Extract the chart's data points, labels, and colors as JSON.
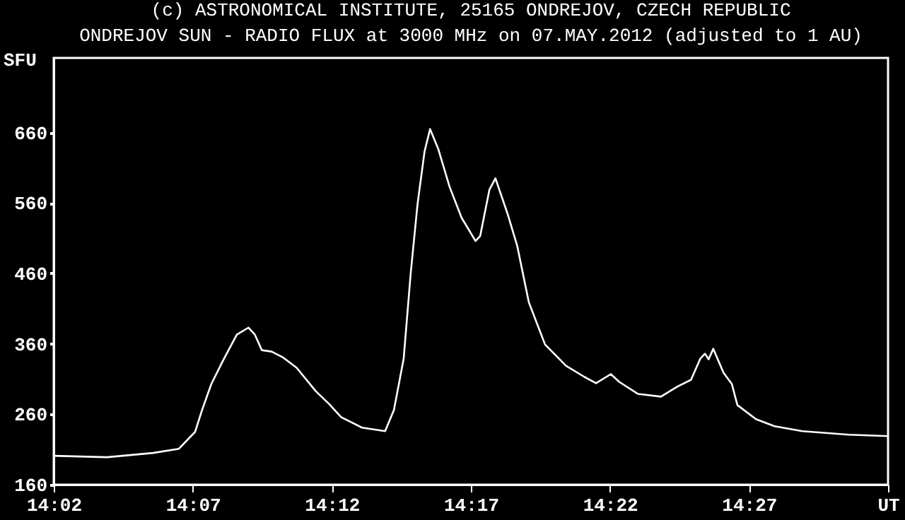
{
  "chart_data": {
    "type": "line",
    "title": "(c) ASTRONOMICAL INSTITUTE, 25165 ONDREJOV, CZECH REPUBLIC",
    "subtitle": "ONDREJOV SUN - RADIO FLUX at 3000 MHz on 07.MAY.2012 (adjusted to 1 AU)",
    "ylabel": "SFU",
    "x": [
      "2012-05-07T14:02:00",
      "2012-05-07T14:03:55",
      "2012-05-07T14:05:34",
      "2012-05-07T14:06:30",
      "2012-05-07T14:07:05",
      "2012-05-07T14:07:20",
      "2012-05-07T14:07:40",
      "2012-05-07T14:08:05",
      "2012-05-07T14:08:35",
      "2012-05-07T14:09:00",
      "2012-05-07T14:09:14",
      "2012-05-07T14:09:29",
      "2012-05-07T14:09:50",
      "2012-05-07T14:10:14",
      "2012-05-07T14:10:44",
      "2012-05-07T14:11:25",
      "2012-05-07T14:11:55",
      "2012-05-07T14:12:20",
      "2012-05-07T14:13:05",
      "2012-05-07T14:13:55",
      "2012-05-07T14:14:14",
      "2012-05-07T14:14:35",
      "2012-05-07T14:14:50",
      "2012-05-07T14:15:05",
      "2012-05-07T14:15:20",
      "2012-05-07T14:15:32",
      "2012-05-07T14:15:50",
      "2012-05-07T14:16:14",
      "2012-05-07T14:16:40",
      "2012-05-07T14:17:10",
      "2012-05-07T14:17:20",
      "2012-05-07T14:17:40",
      "2012-05-07T14:17:53",
      "2012-05-07T14:18:20",
      "2012-05-07T14:18:40",
      "2012-05-07T14:19:05",
      "2012-05-07T14:19:40",
      "2012-05-07T14:20:25",
      "2012-05-07T14:21:05",
      "2012-05-07T14:21:30",
      "2012-05-07T14:22:02",
      "2012-05-07T14:22:20",
      "2012-05-07T14:23:00",
      "2012-05-07T14:23:50",
      "2012-05-07T14:24:25",
      "2012-05-07T14:24:55",
      "2012-05-07T14:25:15",
      "2012-05-07T14:25:25",
      "2012-05-07T14:25:33",
      "2012-05-07T14:25:43",
      "2012-05-07T14:26:05",
      "2012-05-07T14:26:23",
      "2012-05-07T14:26:35",
      "2012-05-07T14:27:15",
      "2012-05-07T14:27:55",
      "2012-05-07T14:28:55",
      "2012-05-07T14:30:35",
      "2012-05-07T14:32:00"
    ],
    "series": [
      {
        "color": "#ffffff",
        "values": [
          201,
          199,
          205,
          211,
          235,
          266,
          303,
          336,
          373,
          383,
          373,
          351,
          349,
          341,
          326,
          293,
          274,
          256,
          241,
          236,
          266,
          339,
          459,
          559,
          633,
          665,
          636,
          583,
          539,
          506,
          513,
          579,
          595,
          543,
          499,
          419,
          359,
          329,
          313,
          304,
          317,
          306,
          289,
          285,
          299,
          309,
          339,
          346,
          338,
          353,
          319,
          303,
          273,
          253,
          243,
          236,
          231,
          229
        ]
      }
    ],
    "xlim": [
      "2012-05-07T14:02:00",
      "2012-05-07T14:32:00"
    ],
    "xticks": [
      {
        "value": "2012-05-07T14:02",
        "label": "14:02"
      },
      {
        "value": "2012-05-07T14:07",
        "label": "14:07"
      },
      {
        "value": "2012-05-07T14:12",
        "label": "14:12"
      },
      {
        "value": "2012-05-07T14:17",
        "label": "14:17"
      },
      {
        "value": "2012-05-07T14:22",
        "label": "14:22"
      },
      {
        "value": "2012-05-07T14:27",
        "label": "14:27"
      },
      {
        "value": "2012-05-07T14:32",
        "label": "UT"
      }
    ],
    "ylim": [
      160,
      766
    ],
    "yticks": [
      160,
      260,
      360,
      460,
      560,
      660
    ]
  }
}
